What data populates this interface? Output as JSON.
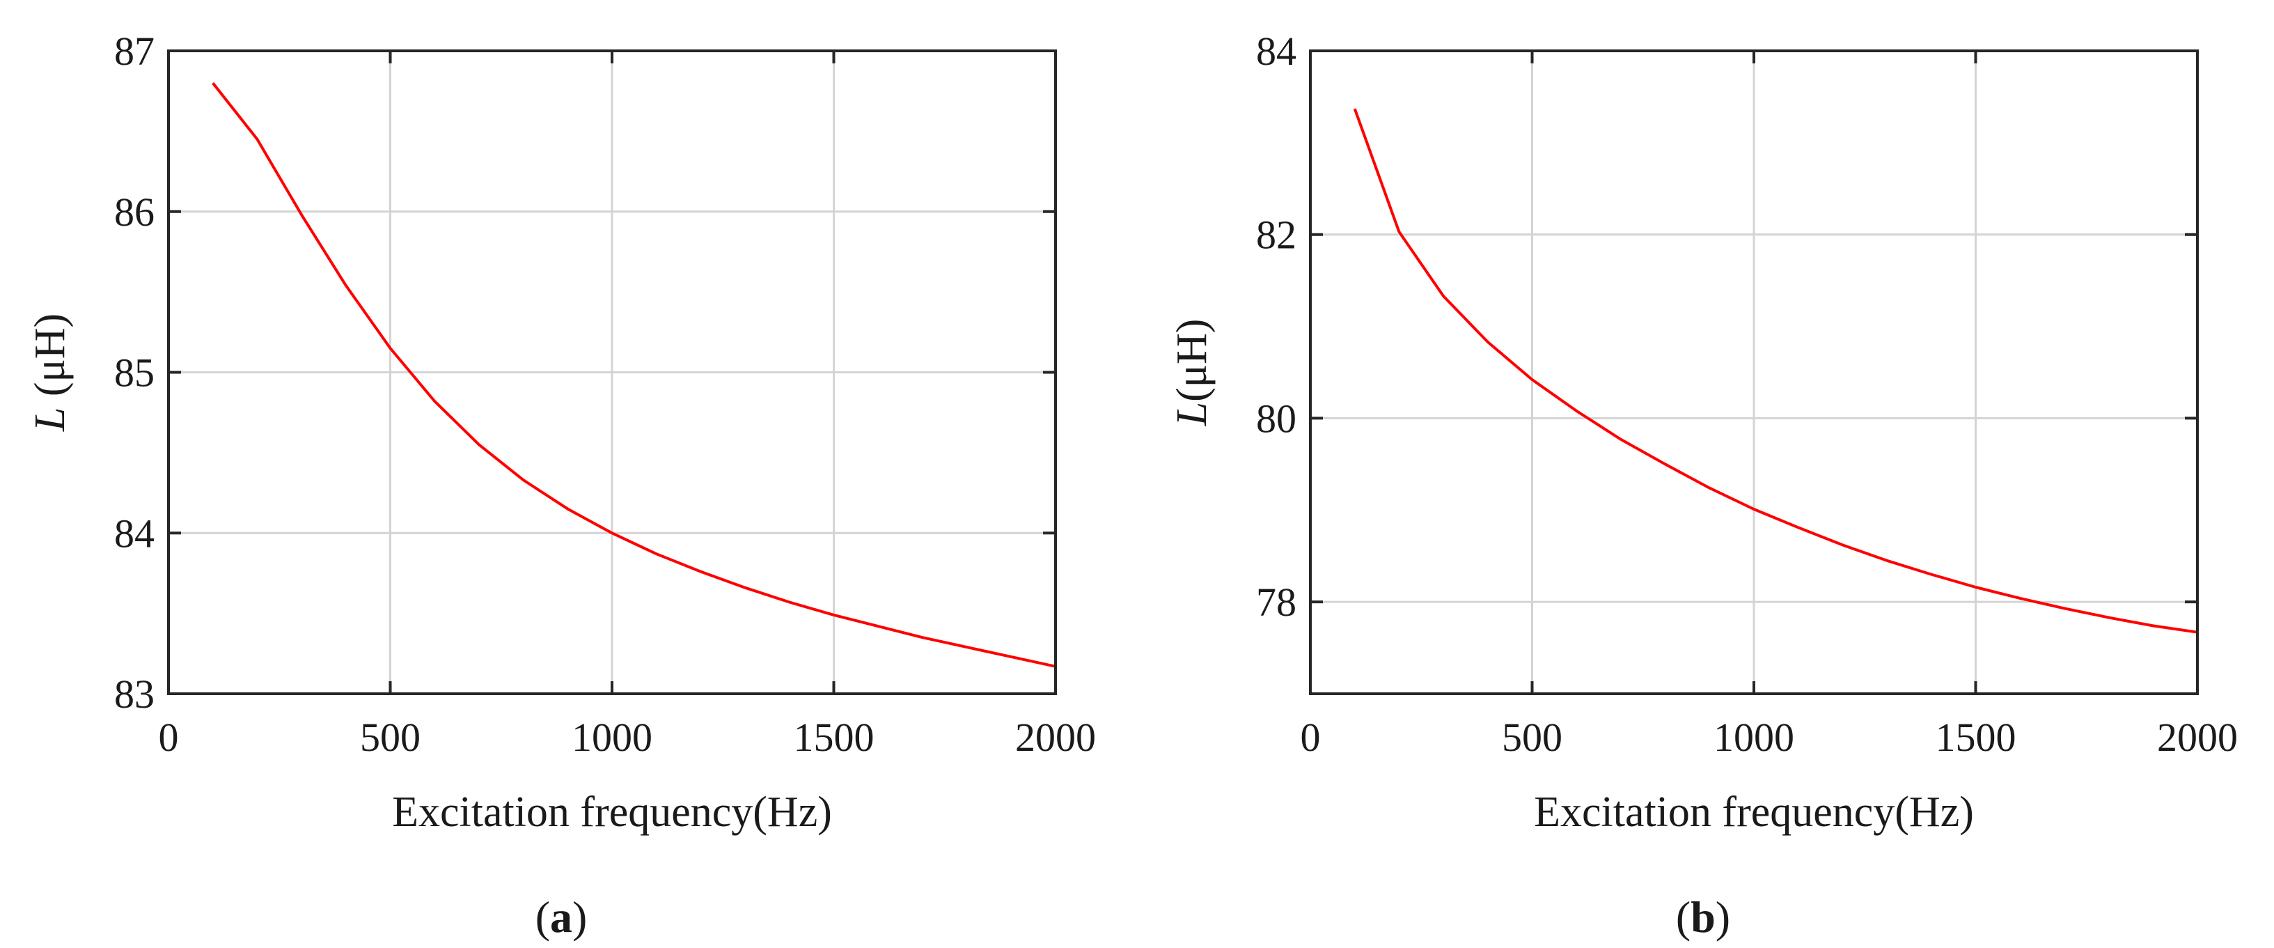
{
  "chart_data": [
    {
      "type": "line",
      "panel_label": "a",
      "title": "",
      "xlabel": "Excitation frequency(Hz)",
      "ylabel_var": "L",
      "ylabel_unit": " (μH)",
      "xlim": [
        0,
        2000
      ],
      "ylim": [
        83,
        87
      ],
      "xticks": [
        0,
        500,
        1000,
        1500,
        2000
      ],
      "yticks": [
        83,
        84,
        85,
        86,
        87
      ],
      "grid": true,
      "series": [
        {
          "name": "L",
          "color": "#ff0000",
          "x": [
            100,
            200,
            300,
            400,
            500,
            600,
            700,
            800,
            900,
            1000,
            1100,
            1200,
            1300,
            1400,
            1500,
            1600,
            1700,
            1800,
            1900,
            2000
          ],
          "y": [
            86.8,
            86.45,
            85.98,
            85.54,
            85.15,
            84.82,
            84.55,
            84.33,
            84.15,
            84.0,
            83.87,
            83.76,
            83.66,
            83.57,
            83.49,
            83.42,
            83.35,
            83.29,
            83.23,
            83.17
          ]
        }
      ]
    },
    {
      "type": "line",
      "panel_label": "b",
      "title": "",
      "xlabel": "Excitation frequency(Hz)",
      "ylabel_var": "L",
      "ylabel_unit": "(μH)",
      "xlim": [
        0,
        2000
      ],
      "ylim": [
        77,
        84
      ],
      "xticks": [
        0,
        500,
        1000,
        1500,
        2000
      ],
      "yticks": [
        78,
        80,
        82,
        84
      ],
      "grid": true,
      "series": [
        {
          "name": "L",
          "color": "#ff0000",
          "x": [
            100,
            200,
            300,
            400,
            500,
            600,
            700,
            800,
            900,
            1000,
            1100,
            1200,
            1300,
            1400,
            1500,
            1600,
            1700,
            1800,
            1900,
            2000
          ],
          "y": [
            83.37,
            82.03,
            81.33,
            80.83,
            80.42,
            80.08,
            79.77,
            79.5,
            79.24,
            79.01,
            78.81,
            78.62,
            78.45,
            78.3,
            78.16,
            78.04,
            77.93,
            77.83,
            77.74,
            77.67
          ]
        }
      ]
    }
  ]
}
